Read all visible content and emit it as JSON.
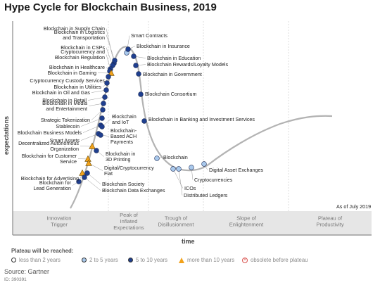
{
  "title": "Hype Cycle for Blockchain Business, 2019",
  "y_axis_label": "expectations",
  "x_axis_label": "time",
  "as_of": "As of July 2019",
  "phases": [
    {
      "lines": [
        "Innovation",
        "Trigger"
      ]
    },
    {
      "lines": [
        "Peak of",
        "Inflated",
        "Expectations"
      ]
    },
    {
      "lines": [
        "Trough of",
        "Disillusionment"
      ]
    },
    {
      "lines": [
        "Slope of",
        "Enlightenment"
      ]
    },
    {
      "lines": [
        "Plateau of",
        "Productivity"
      ]
    }
  ],
  "legend": {
    "title": "Plateau will be reached:",
    "items": [
      {
        "label": "less than 2 years",
        "marker": "circle",
        "color": "#ffffff"
      },
      {
        "label": "2 to 5 years",
        "marker": "circle",
        "color": "#a9c9ec"
      },
      {
        "label": "5 to 10 years",
        "marker": "circle",
        "color": "#1f3f8f"
      },
      {
        "label": "more than 10 years",
        "marker": "triangle",
        "color": "#f2a21b"
      },
      {
        "label": "obsolete before plateau",
        "marker": "x-circle",
        "color": "#d9534f"
      }
    ]
  },
  "colors": {
    "curve": "#b3b3b3",
    "phase_band": "#e6e6e6",
    "dot_dark": "#1f3f8f",
    "dot_light": "#a9c9ec",
    "triangle": "#f2a21b"
  },
  "source": "Source: Gartner",
  "doc_id": "ID: 390391",
  "technologies": [
    {
      "lines": [
        "Blockchain in Supply Chain"
      ],
      "category": "5 to 10 years"
    },
    {
      "lines": [
        "Blockchain in Logistics",
        "and Transportation"
      ],
      "category": "5 to 10 years"
    },
    {
      "lines": [
        "Blockchain in CSPs"
      ],
      "category": "5 to 10 years"
    },
    {
      "lines": [
        "Cryptocurrency and",
        "Blockchain Regulation"
      ],
      "category": "5 to 10 years"
    },
    {
      "lines": [
        "Blockchain in Healthcare"
      ],
      "category": "5 to 10 years"
    },
    {
      "lines": [
        "Blockchain in Gaming"
      ],
      "category": "more than 10 years"
    },
    {
      "lines": [
        "Cryptocurrency Custody Services"
      ],
      "category": "5 to 10 years"
    },
    {
      "lines": [
        "Blockchain in Utilities"
      ],
      "category": "5 to 10 years"
    },
    {
      "lines": [
        "Blockchain in Oil and Gas"
      ],
      "category": "5 to 10 years"
    },
    {
      "lines": [
        "Blockchain in Retail"
      ],
      "category": "5 to 10 years"
    },
    {
      "lines": [
        "Blockchain in Media",
        "and Entertainment"
      ],
      "category": "5 to 10 years"
    },
    {
      "lines": [
        "Strategic Tokenization"
      ],
      "category": "5 to 10 years"
    },
    {
      "lines": [
        "Stablecoin"
      ],
      "category": "5 to 10 years"
    },
    {
      "lines": [
        "Blockchain Business Models"
      ],
      "category": "5 to 10 years"
    },
    {
      "lines": [
        "Smart Assets"
      ],
      "category": "5 to 10 years"
    },
    {
      "lines": [
        "Decentralized Autonomous",
        "Organization"
      ],
      "category": "more than 10 years"
    },
    {
      "lines": [
        "Blockchain for Customer",
        "Service"
      ],
      "category": "more than 10 years"
    },
    {
      "lines": [
        "Blockchain for Advertising"
      ],
      "category": "more than 10 years"
    },
    {
      "lines": [
        "Blockchain for",
        "Lead Generation"
      ],
      "category": "5 to 10 years"
    },
    {
      "lines": [
        "Smart Contracts"
      ],
      "category": "2 to 5 years"
    },
    {
      "lines": [
        "Blockchain in Insurance"
      ],
      "category": "5 to 10 years"
    },
    {
      "lines": [
        "Blockchain in Education"
      ],
      "category": "5 to 10 years"
    },
    {
      "lines": [
        "Blockchain Rewards/Loyalty Models"
      ],
      "category": "5 to 10 years"
    },
    {
      "lines": [
        "Blockchain in Government"
      ],
      "category": "5 to 10 years"
    },
    {
      "lines": [
        "Blockchain Consortium"
      ],
      "category": "5 to 10 years"
    },
    {
      "lines": [
        "Blockchain in Banking and Investment Services"
      ],
      "category": "5 to 10 years"
    },
    {
      "lines": [
        "Blockchain",
        "and IoT"
      ],
      "category": "5 to 10 years"
    },
    {
      "lines": [
        "Blockchain-",
        "Based ACH",
        "Payments"
      ],
      "category": "5 to 10 years"
    },
    {
      "lines": [
        "Blockchain in",
        "3D Printing"
      ],
      "category": "5 to 10 years"
    },
    {
      "lines": [
        "Digital/Cryptocurrency",
        "Fiat"
      ],
      "category": "more than 10 years"
    },
    {
      "lines": [
        "Blockchain Society"
      ],
      "category": "5 to 10 years"
    },
    {
      "lines": [
        "Blockchain Data Exchanges"
      ],
      "category": "5 to 10 years"
    },
    {
      "lines": [
        "Blockchain"
      ],
      "category": "2 to 5 years"
    },
    {
      "lines": [
        "ICOs"
      ],
      "category": "2 to 5 years"
    },
    {
      "lines": [
        "Distributed Ledgers"
      ],
      "category": "2 to 5 years"
    },
    {
      "lines": [
        "Cryptocurrencies"
      ],
      "category": "2 to 5 years"
    },
    {
      "lines": [
        "Digital Asset Exchanges"
      ],
      "category": "2 to 5 years"
    }
  ]
}
